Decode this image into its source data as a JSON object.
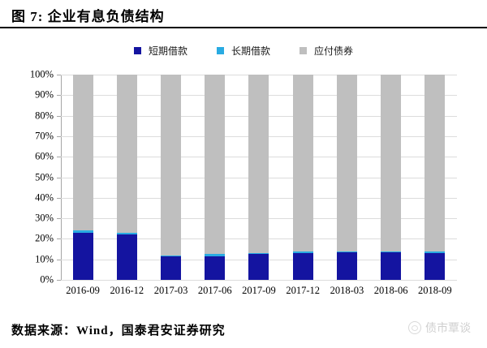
{
  "header": {
    "title": "图 7: 企业有息负债结构"
  },
  "footer": {
    "source": "数据来源：Wind，国泰君安证券研究"
  },
  "watermark": {
    "text": "债市覃谈"
  },
  "chart_data": {
    "type": "bar",
    "stacked": true,
    "title": "企业有息负债结构",
    "categories": [
      "2016-09",
      "2016-12",
      "2017-03",
      "2017-06",
      "2017-09",
      "2017-12",
      "2018-03",
      "2018-06",
      "2018-09"
    ],
    "series": [
      {
        "name": "短期借款",
        "color": "#1414A0",
        "values": [
          23,
          22,
          11.5,
          11.5,
          12.5,
          13,
          13.5,
          13.5,
          13
        ]
      },
      {
        "name": "长期借款",
        "color": "#29ABE2",
        "values": [
          1,
          1,
          0.5,
          1,
          0.5,
          1,
          0.5,
          0.5,
          1
        ]
      },
      {
        "name": "应付债券",
        "color": "#BFBFBF",
        "values": [
          76,
          77,
          88,
          87.5,
          87,
          86,
          86,
          86,
          86
        ]
      }
    ],
    "xlabel": "",
    "ylabel": "",
    "ylim": [
      0,
      100
    ],
    "yticks": [
      "0%",
      "10%",
      "20%",
      "30%",
      "40%",
      "50%",
      "60%",
      "70%",
      "80%",
      "90%",
      "100%"
    ],
    "grid": true,
    "legend_position": "top",
    "gridline_color": "#dcdcdc",
    "axis_color": "#a6a6a6"
  }
}
